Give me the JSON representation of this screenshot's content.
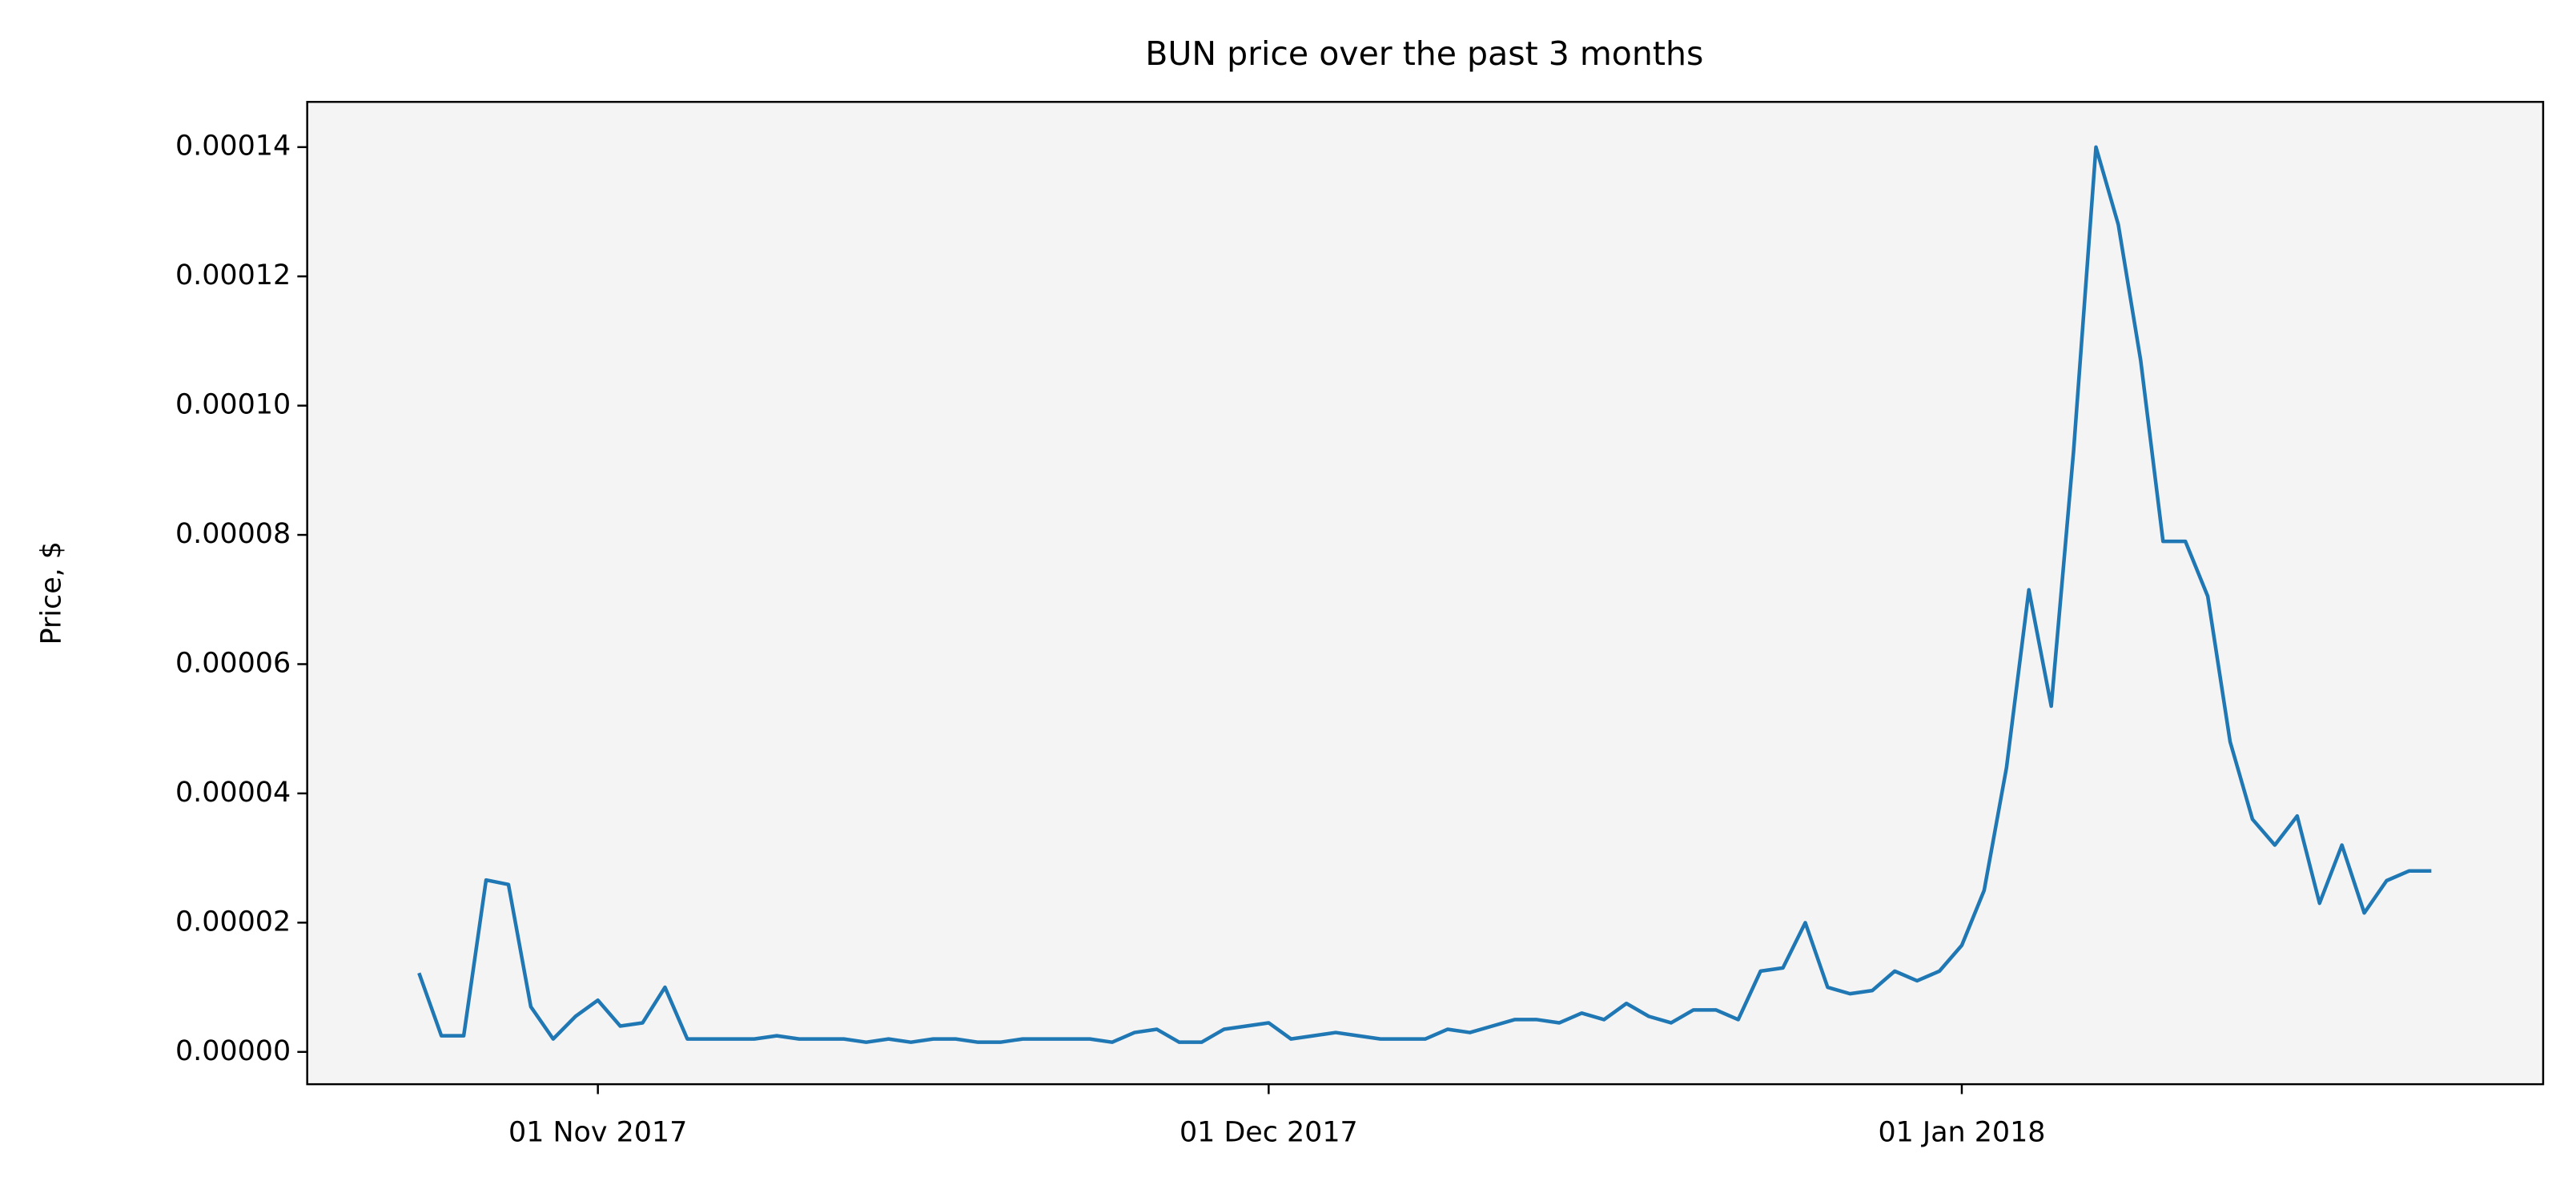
{
  "chart_data": {
    "type": "line",
    "title": "BUN price over the past 3 months",
    "y_label": "Price, $",
    "x": [
      "2017-10-24",
      "2017-10-25",
      "2017-10-26",
      "2017-10-27",
      "2017-10-28",
      "2017-10-29",
      "2017-10-30",
      "2017-10-31",
      "2017-11-01",
      "2017-11-02",
      "2017-11-03",
      "2017-11-04",
      "2017-11-05",
      "2017-11-06",
      "2017-11-07",
      "2017-11-08",
      "2017-11-09",
      "2017-11-10",
      "2017-11-11",
      "2017-11-12",
      "2017-11-13",
      "2017-11-14",
      "2017-11-15",
      "2017-11-16",
      "2017-11-17",
      "2017-11-18",
      "2017-11-19",
      "2017-11-20",
      "2017-11-21",
      "2017-11-22",
      "2017-11-23",
      "2017-11-24",
      "2017-11-25",
      "2017-11-26",
      "2017-11-27",
      "2017-11-28",
      "2017-11-29",
      "2017-11-30",
      "2017-12-01",
      "2017-12-02",
      "2017-12-03",
      "2017-12-04",
      "2017-12-05",
      "2017-12-06",
      "2017-12-07",
      "2017-12-08",
      "2017-12-09",
      "2017-12-10",
      "2017-12-11",
      "2017-12-12",
      "2017-12-13",
      "2017-12-14",
      "2017-12-15",
      "2017-12-16",
      "2017-12-17",
      "2017-12-18",
      "2017-12-19",
      "2017-12-20",
      "2017-12-21",
      "2017-12-22",
      "2017-12-23",
      "2017-12-24",
      "2017-12-25",
      "2017-12-26",
      "2017-12-27",
      "2017-12-28",
      "2017-12-29",
      "2017-12-30",
      "2017-12-31",
      "2018-01-01",
      "2018-01-02",
      "2018-01-03",
      "2018-01-04",
      "2018-01-05",
      "2018-01-06",
      "2018-01-07",
      "2018-01-08",
      "2018-01-09",
      "2018-01-10",
      "2018-01-11",
      "2018-01-12",
      "2018-01-13",
      "2018-01-14",
      "2018-01-15",
      "2018-01-16",
      "2018-01-17",
      "2018-01-18",
      "2018-01-19",
      "2018-01-20",
      "2018-01-21",
      "2018-01-22"
    ],
    "series": [
      {
        "name": "BUN",
        "color": "#1f77b4",
        "values": [
          1.22e-05,
          2.5e-06,
          2.5e-06,
          2.66e-05,
          2.59e-05,
          7e-06,
          2e-06,
          5.5e-06,
          8e-06,
          4e-06,
          4.5e-06,
          1e-05,
          2e-06,
          2e-06,
          2e-06,
          2e-06,
          2.5e-06,
          2e-06,
          2e-06,
          2e-06,
          1.5e-06,
          2e-06,
          1.5e-06,
          2e-06,
          2e-06,
          1.5e-06,
          1.5e-06,
          2e-06,
          2e-06,
          2e-06,
          2e-06,
          1.5e-06,
          3e-06,
          3.5e-06,
          1.5e-06,
          1.5e-06,
          3.5e-06,
          4e-06,
          4.5e-06,
          2e-06,
          2.5e-06,
          3e-06,
          2.5e-06,
          2e-06,
          2e-06,
          2e-06,
          3.5e-06,
          3e-06,
          4e-06,
          5e-06,
          5e-06,
          4.5e-06,
          6e-06,
          5e-06,
          7.5e-06,
          5.5e-06,
          4.5e-06,
          6.5e-06,
          6.5e-06,
          5e-06,
          1.25e-05,
          1.3e-05,
          2e-05,
          1e-05,
          9e-06,
          9.5e-06,
          1.25e-05,
          1.1e-05,
          1.25e-05,
          1.65e-05,
          2.5e-05,
          4.4e-05,
          7.15e-05,
          5.35e-05,
          9.3e-05,
          0.00014,
          0.000128,
          0.000107,
          7.9e-05,
          7.9e-05,
          7.05e-05,
          4.8e-05,
          3.6e-05,
          3.2e-05,
          3.65e-05,
          2.3e-05,
          3.2e-05,
          2.15e-05,
          2.65e-05,
          2.8e-05,
          2.8e-05
        ]
      }
    ],
    "xlim": [
      "2017-10-19",
      "2018-01-27"
    ],
    "xticks": [
      {
        "value": "2017-11-01",
        "label": "01 Nov 2017"
      },
      {
        "value": "2017-12-01",
        "label": "01 Dec 2017"
      },
      {
        "value": "2018-01-01",
        "label": "01 Jan 2018"
      }
    ],
    "ylim": [
      -5e-06,
      0.000147
    ],
    "yticks": [
      {
        "value": 0,
        "label": "0.00000"
      },
      {
        "value": 2e-05,
        "label": "0.00002"
      },
      {
        "value": 4e-05,
        "label": "0.00004"
      },
      {
        "value": 6e-05,
        "label": "0.00006"
      },
      {
        "value": 8e-05,
        "label": "0.00008"
      },
      {
        "value": 0.0001,
        "label": "0.00010"
      },
      {
        "value": 0.00012,
        "label": "0.00012"
      },
      {
        "value": 0.00014,
        "label": "0.00014"
      }
    ],
    "background": "#f4f4f4"
  }
}
